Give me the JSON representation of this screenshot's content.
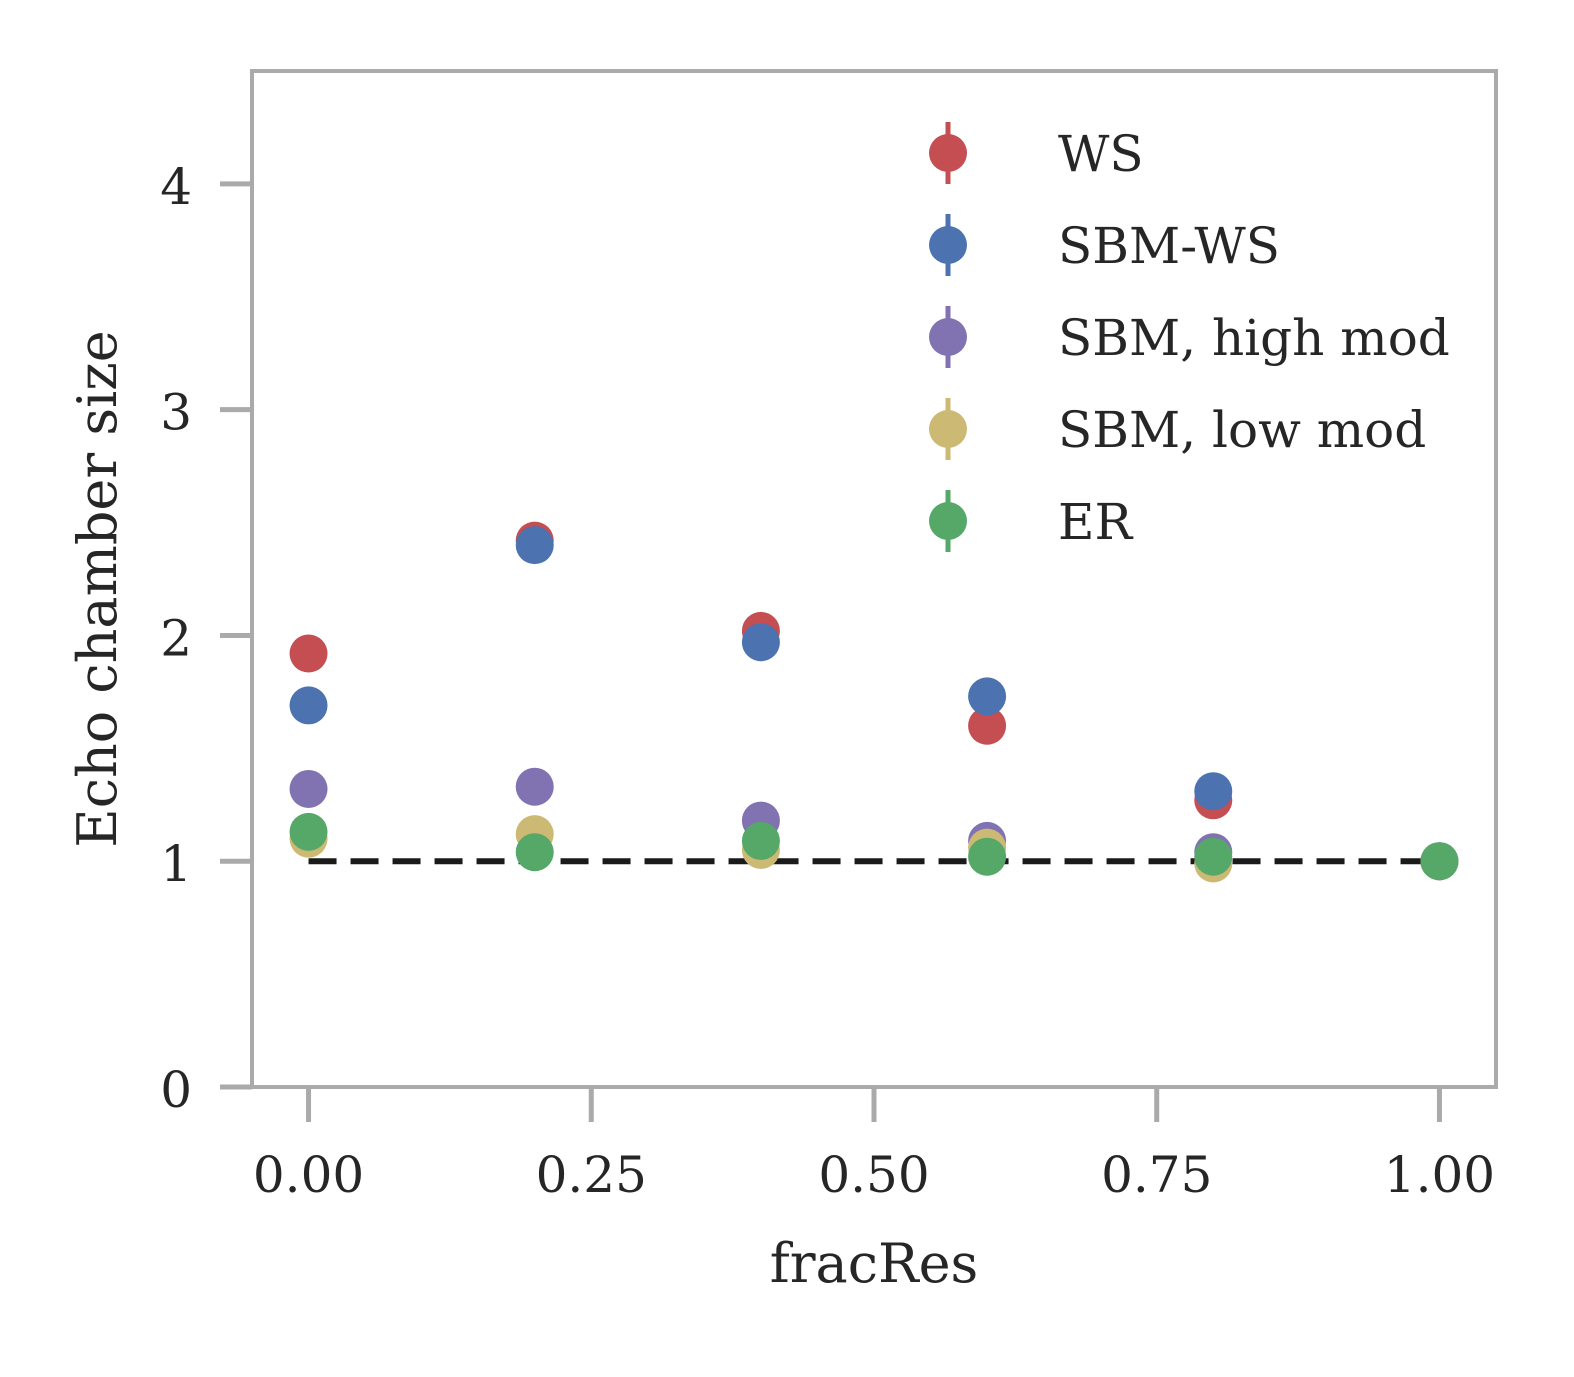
{
  "chart_data": {
    "type": "scatter",
    "title": "",
    "xlabel": "fracRes",
    "ylabel": "Echo chamber size",
    "xlim": [
      -0.05,
      1.05
    ],
    "ylim": [
      0,
      4.5
    ],
    "xticks": [
      0.0,
      0.25,
      0.5,
      0.75,
      1.0
    ],
    "xtick_labels": [
      "0.00",
      "0.25",
      "0.50",
      "0.75",
      "1.00"
    ],
    "yticks": [
      0,
      1,
      2,
      3,
      4
    ],
    "ytick_labels": [
      "0",
      "1",
      "2",
      "3",
      "4"
    ],
    "grid": false,
    "legend_position": "top-right",
    "reference_line": {
      "y": 1,
      "x_range": [
        0.0,
        1.0
      ],
      "style": "dashed",
      "color": "#1a1a1a"
    },
    "series": [
      {
        "name": "WS",
        "color": "#c44e52",
        "x": [
          0.0,
          0.2,
          0.4,
          0.6,
          0.8,
          1.0
        ],
        "y": [
          1.92,
          2.42,
          2.02,
          1.6,
          1.27,
          1.0
        ]
      },
      {
        "name": "SBM-WS",
        "color": "#4c72b0",
        "x": [
          0.0,
          0.2,
          0.4,
          0.6,
          0.8,
          1.0
        ],
        "y": [
          1.69,
          2.4,
          1.97,
          1.73,
          1.31,
          1.0
        ]
      },
      {
        "name": "SBM, high mod",
        "color": "#8172b2",
        "x": [
          0.0,
          0.2,
          0.4,
          0.6,
          0.8,
          1.0
        ],
        "y": [
          1.32,
          1.33,
          1.18,
          1.09,
          1.04,
          1.0
        ]
      },
      {
        "name": "SBM, low mod",
        "color": "#ccb974",
        "x": [
          0.0,
          0.2,
          0.4,
          0.6,
          0.8,
          1.0
        ],
        "y": [
          1.1,
          1.12,
          1.05,
          1.06,
          0.99,
          1.0
        ]
      },
      {
        "name": "ER",
        "color": "#55a868",
        "x": [
          0.0,
          0.2,
          0.4,
          0.6,
          0.8,
          1.0
        ],
        "y": [
          1.13,
          1.04,
          1.09,
          1.02,
          1.02,
          1.0
        ]
      }
    ]
  }
}
